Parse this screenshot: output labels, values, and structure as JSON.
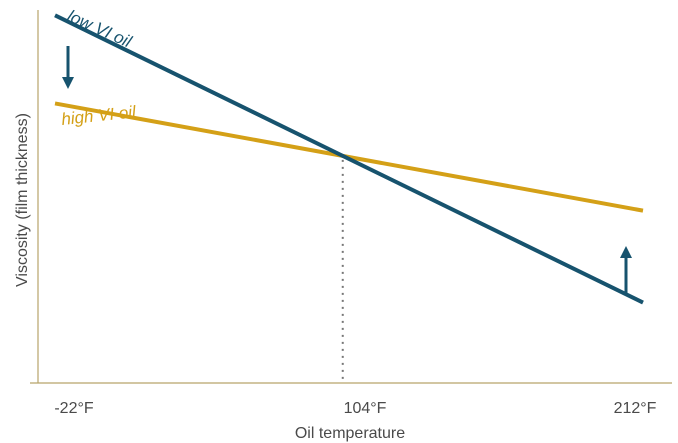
{
  "chart_data": {
    "type": "line",
    "title": "",
    "xlabel": "Oil temperature",
    "ylabel": "Viscosity (film thickness)",
    "x_ticks": [
      "-22°F",
      "104°F",
      "212°F"
    ],
    "y_ticks": [],
    "grid": false,
    "marker_at": "104°F",
    "series": [
      {
        "name": "low VI oil",
        "color": "#17536e",
        "x": [
          "-22°F",
          "212°F"
        ],
        "y": [
          0.96,
          0.21
        ],
        "trend_arrow": "down"
      },
      {
        "name": "high VI oil",
        "color": "#d4a017",
        "x": [
          "-22°F",
          "212°F"
        ],
        "y": [
          0.73,
          0.45
        ],
        "trend_arrow": "up"
      }
    ]
  },
  "colors": {
    "axis": "#b8a46a",
    "dotted_line": "#777777",
    "text": "#4a4a4a"
  }
}
